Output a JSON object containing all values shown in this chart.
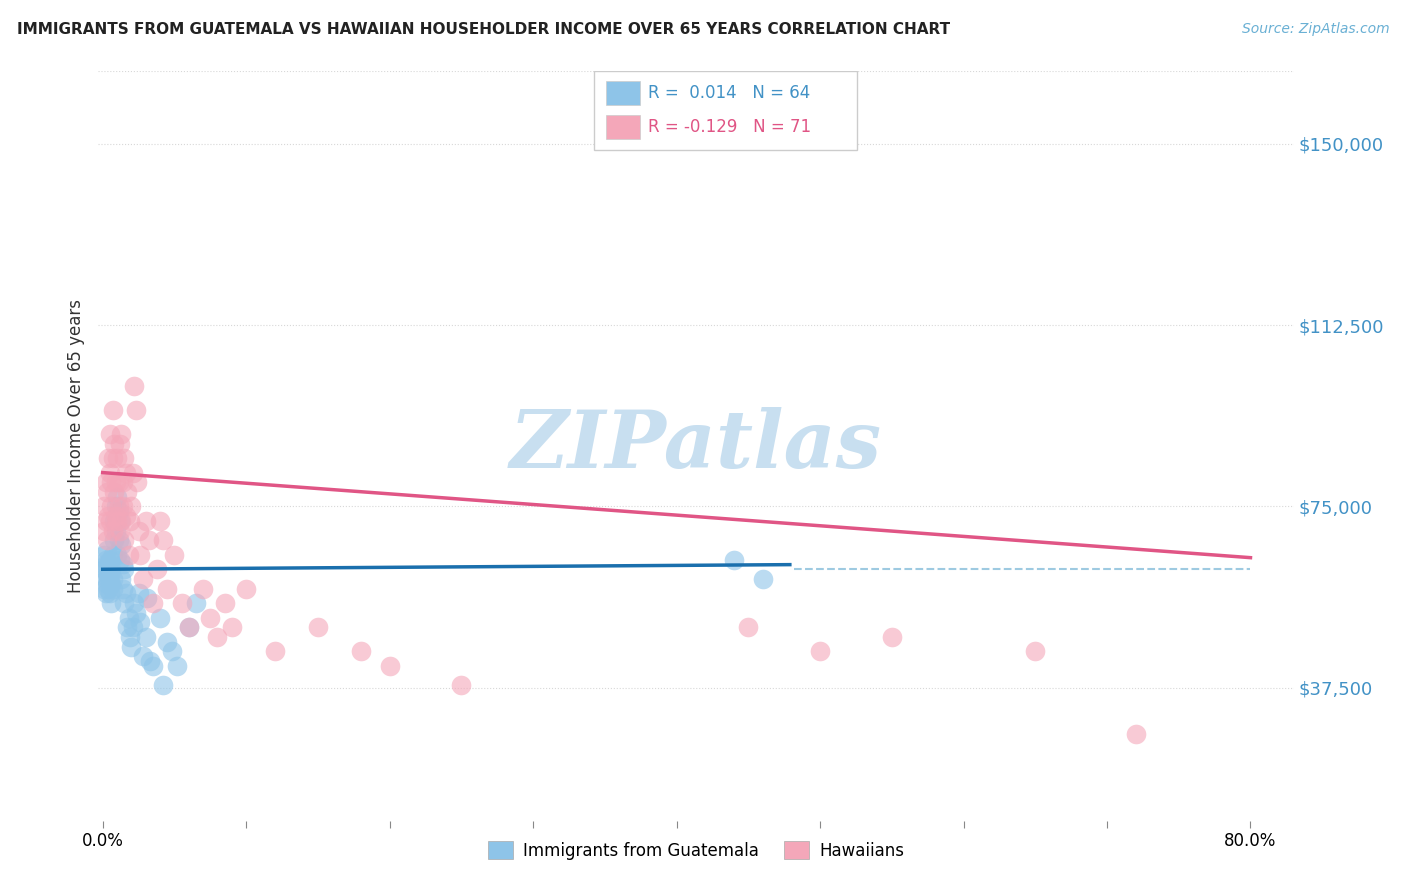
{
  "title": "IMMIGRANTS FROM GUATEMALA VS HAWAIIAN HOUSEHOLDER INCOME OVER 65 YEARS CORRELATION CHART",
  "source": "Source: ZipAtlas.com",
  "ylabel": "Householder Income Over 65 years",
  "ytick_labels": [
    "$37,500",
    "$75,000",
    "$112,500",
    "$150,000"
  ],
  "ytick_values": [
    37500,
    75000,
    112500,
    150000
  ],
  "ymax": 165000,
  "ymin": 10000,
  "xmin": -0.003,
  "xmax": 0.83,
  "color_blue": "#8ec4e8",
  "color_pink": "#f4a7b9",
  "color_blue_text": "#4292c6",
  "color_pink_text": "#e05585",
  "color_line_blue": "#1a6fad",
  "color_line_pink": "#e05585",
  "color_dashed": "#9ecae1",
  "color_grid": "#d8d8d8",
  "watermark_color": "#c8dff0",
  "legend_label1": "Immigrants from Guatemala",
  "legend_label2": "Hawaiians",
  "blue_R": 0.014,
  "blue_N": 64,
  "pink_R": -0.129,
  "pink_N": 71,
  "scatter_blue_x": [
    0.001,
    0.001,
    0.001,
    0.002,
    0.002,
    0.002,
    0.002,
    0.003,
    0.003,
    0.003,
    0.003,
    0.004,
    0.004,
    0.004,
    0.005,
    0.005,
    0.005,
    0.005,
    0.006,
    0.006,
    0.006,
    0.007,
    0.007,
    0.007,
    0.008,
    0.008,
    0.009,
    0.009,
    0.01,
    0.01,
    0.011,
    0.011,
    0.012,
    0.012,
    0.013,
    0.013,
    0.014,
    0.014,
    0.015,
    0.015,
    0.016,
    0.017,
    0.018,
    0.019,
    0.02,
    0.021,
    0.022,
    0.023,
    0.025,
    0.026,
    0.028,
    0.03,
    0.031,
    0.033,
    0.035,
    0.04,
    0.042,
    0.045,
    0.048,
    0.052,
    0.06,
    0.065,
    0.44,
    0.46
  ],
  "scatter_blue_y": [
    62000,
    65000,
    58000,
    60000,
    63000,
    57000,
    64000,
    61000,
    59000,
    62000,
    66000,
    60000,
    58000,
    63000,
    61000,
    64000,
    57000,
    60000,
    62000,
    59000,
    55000,
    65000,
    60000,
    58000,
    72000,
    68000,
    75000,
    70000,
    77000,
    65000,
    74000,
    68000,
    72000,
    64000,
    67000,
    60000,
    63000,
    58000,
    62000,
    55000,
    57000,
    50000,
    52000,
    48000,
    46000,
    50000,
    55000,
    53000,
    57000,
    51000,
    44000,
    48000,
    56000,
    43000,
    42000,
    52000,
    38000,
    47000,
    45000,
    42000,
    50000,
    55000,
    64000,
    60000
  ],
  "scatter_pink_x": [
    0.001,
    0.001,
    0.002,
    0.002,
    0.003,
    0.003,
    0.004,
    0.004,
    0.005,
    0.005,
    0.005,
    0.006,
    0.006,
    0.007,
    0.007,
    0.007,
    0.008,
    0.008,
    0.009,
    0.009,
    0.01,
    0.01,
    0.011,
    0.011,
    0.012,
    0.012,
    0.013,
    0.013,
    0.014,
    0.014,
    0.015,
    0.015,
    0.016,
    0.016,
    0.017,
    0.018,
    0.019,
    0.02,
    0.021,
    0.022,
    0.023,
    0.024,
    0.025,
    0.026,
    0.028,
    0.03,
    0.032,
    0.035,
    0.038,
    0.04,
    0.042,
    0.045,
    0.05,
    0.055,
    0.06,
    0.07,
    0.075,
    0.08,
    0.085,
    0.09,
    0.1,
    0.12,
    0.15,
    0.18,
    0.2,
    0.25,
    0.45,
    0.5,
    0.55,
    0.65,
    0.72
  ],
  "scatter_pink_y": [
    75000,
    70000,
    80000,
    72000,
    68000,
    78000,
    85000,
    73000,
    90000,
    82000,
    72000,
    80000,
    75000,
    95000,
    85000,
    70000,
    88000,
    78000,
    80000,
    73000,
    85000,
    72000,
    80000,
    75000,
    88000,
    70000,
    90000,
    72000,
    80000,
    75000,
    85000,
    68000,
    82000,
    73000,
    78000,
    65000,
    72000,
    75000,
    82000,
    100000,
    95000,
    80000,
    70000,
    65000,
    60000,
    72000,
    68000,
    55000,
    62000,
    72000,
    68000,
    58000,
    65000,
    55000,
    50000,
    58000,
    52000,
    48000,
    55000,
    50000,
    58000,
    45000,
    50000,
    45000,
    42000,
    38000,
    50000,
    45000,
    48000,
    45000,
    28000
  ]
}
